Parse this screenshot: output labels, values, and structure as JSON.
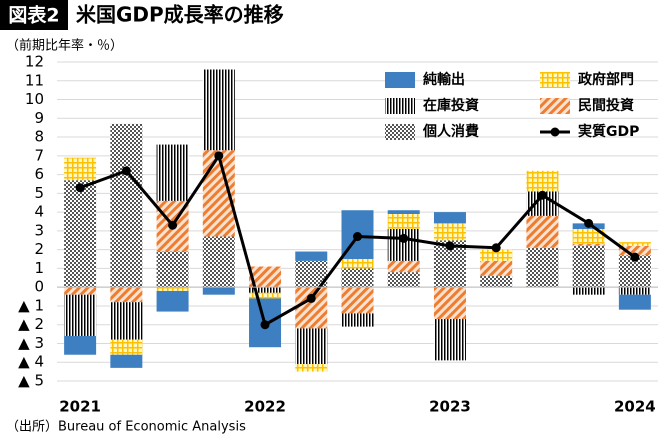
{
  "header": {
    "badge": "図表2",
    "title": "米国GDP成長率の推移"
  },
  "chart_data": {
    "type": "bar",
    "stacked": true,
    "ylabel": "（前期比年率・％）",
    "source": "（出所）Bureau of Economic Analysis",
    "categories": [
      "2021",
      null,
      null,
      null,
      "2022",
      null,
      null,
      null,
      "2023",
      null,
      null,
      null,
      "2024"
    ],
    "series": [
      {
        "name": "個人消費",
        "color": "#7f7f7f",
        "values": [
          5.7,
          8.7,
          1.9,
          2.7,
          0,
          1.4,
          1.0,
          0.8,
          2.5,
          0.6,
          2.1,
          2.2,
          1.7
        ]
      },
      {
        "name": "民間投資",
        "color": "#ed7d31",
        "values": [
          -0.4,
          -0.8,
          2.7,
          4.6,
          1.1,
          -2.2,
          -1.4,
          0.6,
          -1.7,
          0.8,
          1.7,
          0.1,
          0.5
        ]
      },
      {
        "name": "在庫投資",
        "color": "#000000",
        "values": [
          -2.2,
          -2.0,
          3.0,
          4.3,
          -0.3,
          -1.9,
          -0.7,
          1.7,
          -2.2,
          0,
          1.3,
          -0.4,
          -0.4
        ]
      },
      {
        "name": "政府部門",
        "color": "#ffd700",
        "values": [
          1.2,
          -0.8,
          -0.2,
          0,
          -0.3,
          -0.4,
          0.5,
          0.8,
          0.9,
          0.6,
          1.1,
          0.8,
          0.2
        ]
      },
      {
        "name": "純輸出",
        "color": "#3d7fc1",
        "values": [
          -1.0,
          -0.7,
          -1.1,
          -0.4,
          -2.6,
          0.5,
          2.6,
          0.2,
          0.6,
          0,
          0,
          0.3,
          -0.8
        ]
      }
    ],
    "line": {
      "name": "実質GDP",
      "color": "#000000",
      "values": [
        5.3,
        6.2,
        3.3,
        7.0,
        -2.0,
        -0.6,
        2.7,
        2.6,
        2.2,
        2.1,
        4.9,
        3.4,
        1.6
      ]
    },
    "ylim": [
      -5,
      12
    ],
    "yticks": [
      {
        "value": -5,
        "label": "▲ 5"
      },
      {
        "value": -4,
        "label": "▲ 4"
      },
      {
        "value": -3,
        "label": "▲ 3"
      },
      {
        "value": -2,
        "label": "▲ 2"
      },
      {
        "value": -1,
        "label": "▲ 1"
      },
      0,
      1,
      2,
      3,
      4,
      5,
      6,
      7,
      8,
      9,
      10,
      11,
      12
    ],
    "grid": true
  }
}
